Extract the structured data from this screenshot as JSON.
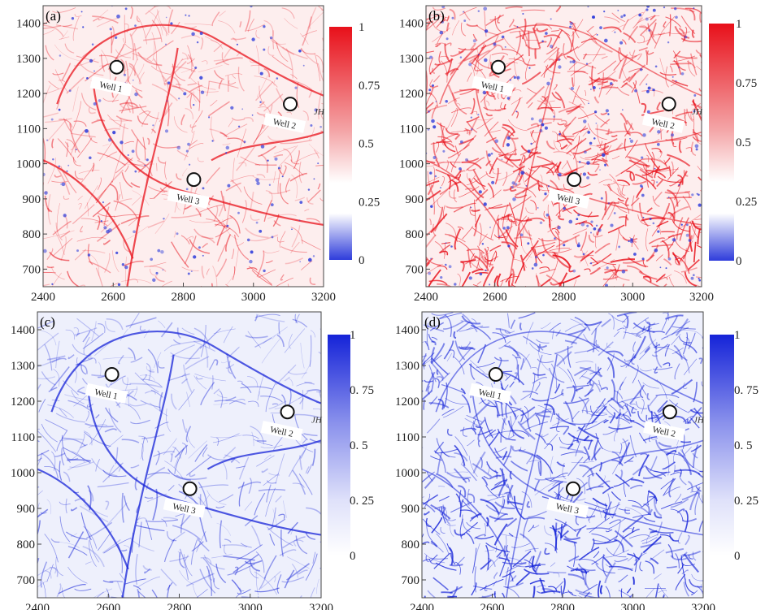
{
  "chart_data": [
    {
      "type": "heatmap",
      "panel_label": "(a)",
      "colormap": "white-blue-red",
      "colorbar": {
        "ticks": [
          "1",
          "0.75",
          "0.5",
          "0.25",
          "0"
        ],
        "range": [
          0,
          1
        ]
      },
      "xlim": [
        2400,
        3200
      ],
      "ylim": [
        650,
        1450
      ],
      "xticks": [
        2400,
        2600,
        2800,
        3000,
        3200
      ],
      "yticks": [
        700,
        800,
        900,
        1000,
        1100,
        1200,
        1300,
        1400
      ],
      "wells": [
        {
          "name": "Well 1",
          "x": 2610,
          "y": 1275
        },
        {
          "name": "Well 2",
          "x": 3105,
          "y": 1170
        },
        {
          "name": "Well 3",
          "x": 2830,
          "y": 955
        }
      ],
      "annotation": "JH"
    },
    {
      "type": "heatmap",
      "panel_label": "(b)",
      "colormap": "white-blue-red",
      "colorbar": {
        "ticks": [
          "1",
          "0.75",
          "0.5",
          "0.25",
          "0"
        ],
        "range": [
          0,
          1
        ]
      },
      "xlim": [
        2400,
        3200
      ],
      "ylim": [
        650,
        1450
      ],
      "xticks": [
        2400,
        2600,
        2800,
        3000,
        3200
      ],
      "yticks": [
        700,
        800,
        900,
        1000,
        1100,
        1200,
        1300,
        1400
      ],
      "wells": [
        {
          "name": "Well 1",
          "x": 2610,
          "y": 1275
        },
        {
          "name": "Well 2",
          "x": 3105,
          "y": 1170
        },
        {
          "name": "Well 3",
          "x": 2830,
          "y": 955
        }
      ],
      "annotation": "JH"
    },
    {
      "type": "heatmap",
      "panel_label": "(c)",
      "colormap": "white-blue",
      "colorbar": {
        "ticks": [
          "1",
          "0. 75",
          "0. 5",
          "0. 25",
          "0"
        ],
        "range": [
          0,
          1
        ]
      },
      "xlim": [
        2400,
        3200
      ],
      "ylim": [
        650,
        1450
      ],
      "xticks": [
        2400,
        2600,
        2800,
        3000,
        3200
      ],
      "yticks": [
        700,
        800,
        900,
        1000,
        1100,
        1200,
        1300,
        1400
      ],
      "wells": [
        {
          "name": "Well 1",
          "x": 2610,
          "y": 1275
        },
        {
          "name": "Well 2",
          "x": 3105,
          "y": 1170
        },
        {
          "name": "Well 3",
          "x": 2830,
          "y": 955
        }
      ],
      "annotation": "JH"
    },
    {
      "type": "heatmap",
      "panel_label": "(d)",
      "colormap": "white-blue",
      "colorbar": {
        "ticks": [
          "1",
          "0. 75",
          "0. 5",
          "0. 25",
          "0"
        ],
        "range": [
          0,
          1
        ]
      },
      "xlim": [
        2400,
        3200
      ],
      "ylim": [
        650,
        1450
      ],
      "xticks": [
        2400,
        2600,
        2800,
        3000,
        3200
      ],
      "yticks": [
        700,
        800,
        900,
        1000,
        1100,
        1200,
        1300,
        1400
      ],
      "wells": [
        {
          "name": "Well 1",
          "x": 2610,
          "y": 1275
        },
        {
          "name": "Well 2",
          "x": 3105,
          "y": 1170
        },
        {
          "name": "Well 3",
          "x": 2830,
          "y": 955
        }
      ],
      "annotation": "JH"
    }
  ],
  "colors": {
    "red_high": "#e8101a",
    "red_mid": "#f4a6a8",
    "mid_white": "#ffffff",
    "blue_low": "#2e3cdb",
    "blue_high": "#1523d8",
    "blue_tint": "#eef0fc",
    "red_tint": "#fdeeee"
  }
}
